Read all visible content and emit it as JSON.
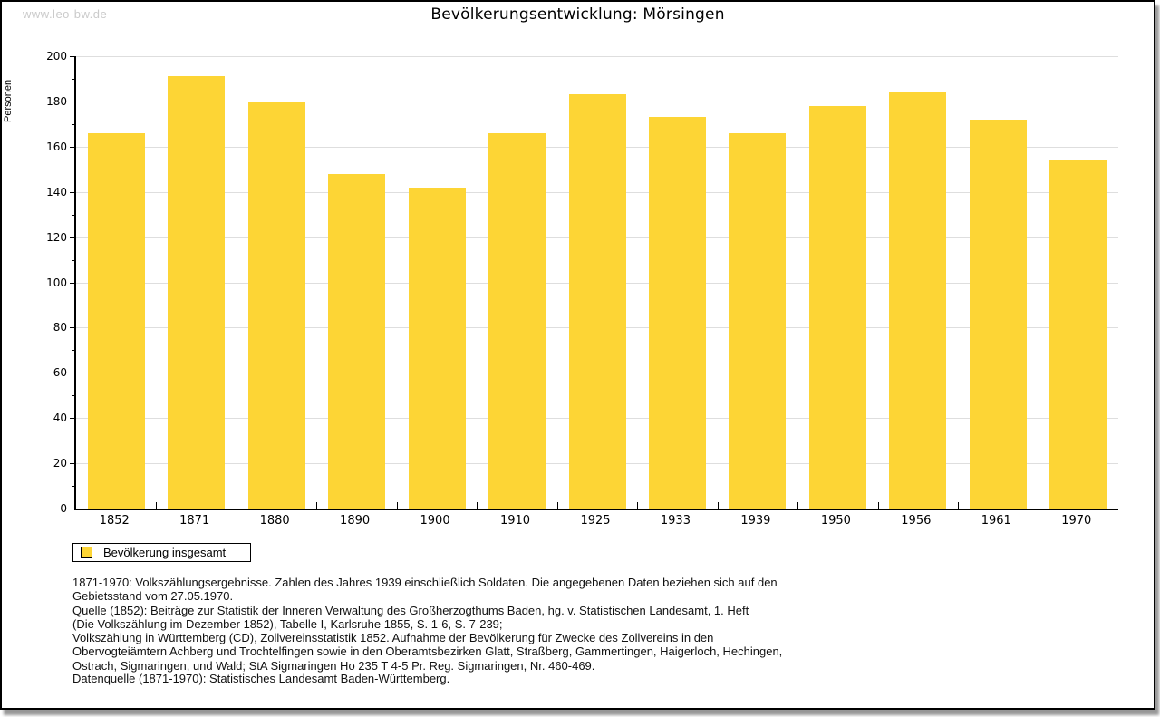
{
  "watermark": "www.leo-bw.de",
  "chart_data": {
    "type": "bar",
    "title": "Bevölkerungsentwicklung: Mörsingen",
    "ylabel": "Personen",
    "xlabel": "",
    "categories": [
      "1852",
      "1871",
      "1880",
      "1890",
      "1900",
      "1910",
      "1925",
      "1933",
      "1939",
      "1950",
      "1956",
      "1961",
      "1970"
    ],
    "series": [
      {
        "name": "Bevölkerung insgesamt",
        "values": [
          166,
          191,
          180,
          148,
          142,
          166,
          183,
          173,
          166,
          178,
          184,
          172,
          154
        ]
      }
    ],
    "ylim": [
      0,
      200
    ],
    "yticks": [
      0,
      20,
      40,
      60,
      80,
      100,
      120,
      140,
      160,
      180,
      200
    ],
    "ytick_minor_step": 10,
    "grid": true,
    "bar_color": "#fdd535",
    "legend_position": "bottom-left"
  },
  "legend": {
    "label": "Bevölkerung insgesamt",
    "swatch_color": "#fdd535"
  },
  "footer": {
    "lines": [
      "1871-1970: Volkszählungsergebnisse. Zahlen des Jahres 1939 einschließlich Soldaten. Die angegebenen Daten beziehen sich auf den",
      "Gebietsstand vom 27.05.1970.",
      "Quelle (1852): Beiträge zur Statistik der Inneren Verwaltung des Großherzogthums Baden, hg. v. Statistischen Landesamt, 1. Heft",
      "(Die Volkszählung im Dezember 1852), Tabelle I, Karlsruhe 1855, S. 1-6, S. 7-239;",
      "Volkszählung in Württemberg (CD), Zollvereinsstatistik 1852. Aufnahme der Bevölkerung für Zwecke des Zollvereins in den",
      "Obervogteiämtern Achberg und Trochtelfingen sowie in den Oberamtsbezirken Glatt, Straßberg, Gammertingen, Haigerloch, Hechingen,",
      "Ostrach, Sigmaringen, und Wald; StA Sigmaringen Ho 235 T 4-5 Pr. Reg. Sigmaringen, Nr. 460-469."
    ],
    "datasource": "Datenquelle (1871-1970): Statistisches Landesamt Baden-Württemberg."
  }
}
